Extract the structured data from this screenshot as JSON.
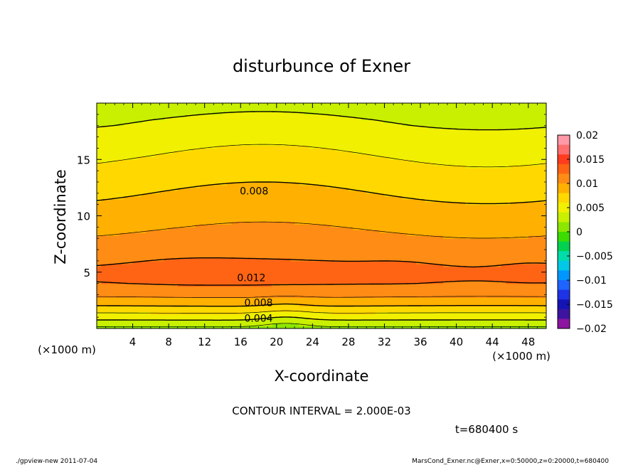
{
  "chart_data": {
    "type": "heatmap",
    "subtype": "filled-contour",
    "title": "disturbunce of Exner",
    "xlabel": "X-coordinate",
    "ylabel": "Z-coordinate",
    "x_unit": "(×1000 m)",
    "y_unit": "(×1000 m)",
    "xlim": [
      0,
      50
    ],
    "ylim": [
      0,
      20
    ],
    "x_ticks": [
      4,
      8,
      12,
      16,
      20,
      24,
      28,
      32,
      36,
      40,
      44,
      48
    ],
    "y_ticks": [
      5,
      10,
      15
    ],
    "contour_interval_label": "CONTOUR INTERVAL = 2.000E-03",
    "contour_interval": 0.002,
    "time_label": "t=680400 s",
    "footer_left": "./gpview-new   2011-07-04",
    "footer_right": "MarsCond_Exner.nc@Exner,x=0:50000,z=0:20000,t=680400",
    "contour_labels": [
      {
        "text": "0.008",
        "x": 17.5,
        "z": 12.2
      },
      {
        "text": "0.012",
        "x": 17.2,
        "z": 4.5
      },
      {
        "text": "0.008",
        "x": 18.0,
        "z": 2.3
      },
      {
        "text": "0.004",
        "x": 18.0,
        "z": 0.9
      }
    ],
    "colorbar": {
      "min": -0.02,
      "max": 0.02,
      "tick_labels": [
        "0.02",
        "0.015",
        "0.01",
        "0.005",
        "0",
        "−0.005",
        "−0.01",
        "−0.015",
        "−0.02"
      ],
      "tick_values": [
        0.02,
        0.015,
        0.01,
        0.005,
        0,
        -0.005,
        -0.01,
        -0.015,
        -0.02
      ],
      "colors_high_to_low": [
        "#ff9aa8",
        "#ff6f6f",
        "#ff3c1e",
        "#ff6414",
        "#ff8c14",
        "#ffb000",
        "#ffd800",
        "#f0f000",
        "#c8f000",
        "#8ce600",
        "#3cdc00",
        "#00d250",
        "#00dcaa",
        "#00c8e6",
        "#0096ff",
        "#1e64ff",
        "#1e32e6",
        "#1414b4",
        "#3c14a0",
        "#8c14a0"
      ]
    },
    "profile_z": [
      0,
      0.5,
      1,
      1.5,
      2,
      2.5,
      3,
      3.5,
      4,
      4.5,
      5,
      5.5,
      6,
      6.5,
      7,
      7.5,
      8,
      8.5,
      9,
      9.5,
      10,
      10.5,
      11,
      11.5,
      12,
      12.5,
      13,
      13.5,
      14,
      14.5,
      15,
      15.5,
      16,
      16.5,
      17,
      17.5,
      18,
      18.5,
      19,
      19.5,
      20
    ],
    "profile_value": [
      0.0015,
      0.0032,
      0.0048,
      0.0064,
      0.008,
      0.0093,
      0.0105,
      0.0113,
      0.012,
      0.0124,
      0.0124,
      0.0122,
      0.0118,
      0.0114,
      0.011,
      0.0107,
      0.0104,
      0.0101,
      0.0098,
      0.0095,
      0.0092,
      0.0089,
      0.0086,
      0.0083,
      0.008,
      0.0077,
      0.0074,
      0.0071,
      0.0068,
      0.0065,
      0.0062,
      0.0059,
      0.0056,
      0.0053,
      0.005,
      0.0047,
      0.0043,
      0.004,
      0.0036,
      0.0032,
      0.0028
    ]
  }
}
